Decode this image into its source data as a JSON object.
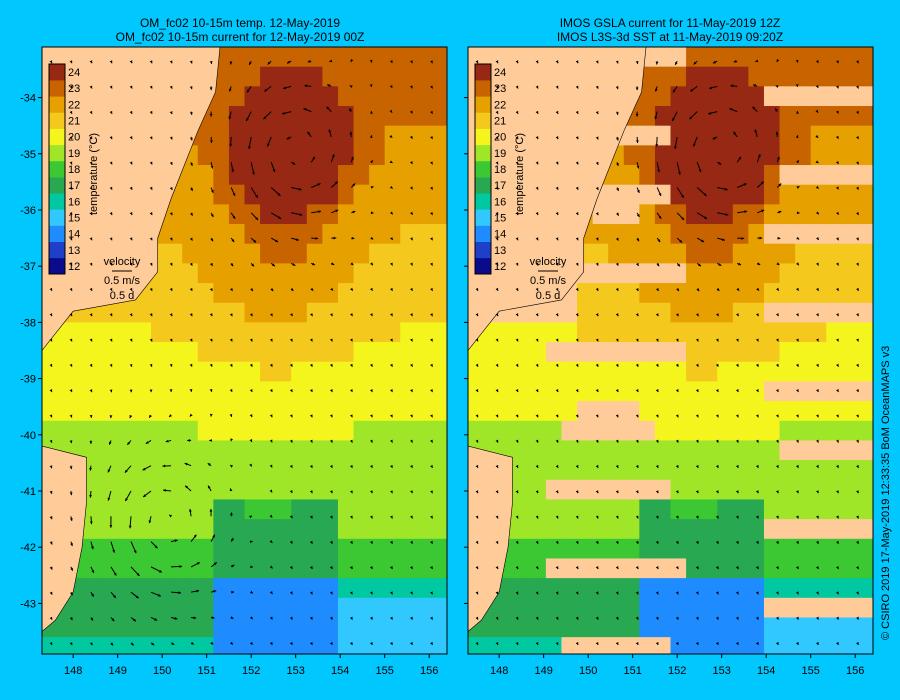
{
  "panels": [
    {
      "title_line1": "OM_fc02 10-15m temp. 12-May-2019",
      "title_line2": "OM_fc02 10-15m current for 12-May-2019 00Z",
      "colorbar_label": "temperature (°C)",
      "legend_title": "velocity",
      "legend_speed": "0.5 m/s",
      "legend_time": "0.5 d"
    },
    {
      "title_line1": "IMOS GSLA current for 11-May-2019 12Z",
      "title_line2": "IMOS L3S-3d SST at 11-May-2019 09:20Z",
      "colorbar_label": "temperature (°C)",
      "legend_title": "velocity",
      "legend_speed": "0.5 m/s",
      "legend_time": "0.5 d"
    }
  ],
  "colorbar_ticks": [
    "24",
    "23",
    "22",
    "21",
    "20",
    "19",
    "18",
    "17",
    "16",
    "15",
    "14",
    "13",
    "12"
  ],
  "lat_ticks": [
    "-34",
    "-35",
    "-36",
    "-37",
    "-38",
    "-39",
    "-40",
    "-41",
    "-42",
    "-43"
  ],
  "lon_ticks": [
    "148",
    "149",
    "150",
    "151",
    "152",
    "153",
    "154",
    "155",
    "156"
  ],
  "credit": "© CSIRO 2019   17-May-2019 12:33:35 BoM OceanMAPS v3",
  "colors": {
    "background": "#00c8ff",
    "land": "#ffcc99",
    "colormap": [
      "#0a0a8c",
      "#1e40c8",
      "#1e8cff",
      "#30c8ff",
      "#00c8a0",
      "#28a850",
      "#3cc832",
      "#a0e628",
      "#f5f51e",
      "#f5c81e",
      "#e6a000",
      "#c86400",
      "#962814"
    ]
  },
  "map_data": {
    "extent_lon": [
      147.3,
      156.4
    ],
    "extent_lat": [
      -43.9,
      -33.1
    ],
    "eddies": [
      {
        "panel": 0,
        "lon": 152.9,
        "lat": -35.0,
        "rot": 1
      },
      {
        "panel": 0,
        "lon": 150.0,
        "lat": -41.6,
        "rot": 1
      }
    ]
  }
}
